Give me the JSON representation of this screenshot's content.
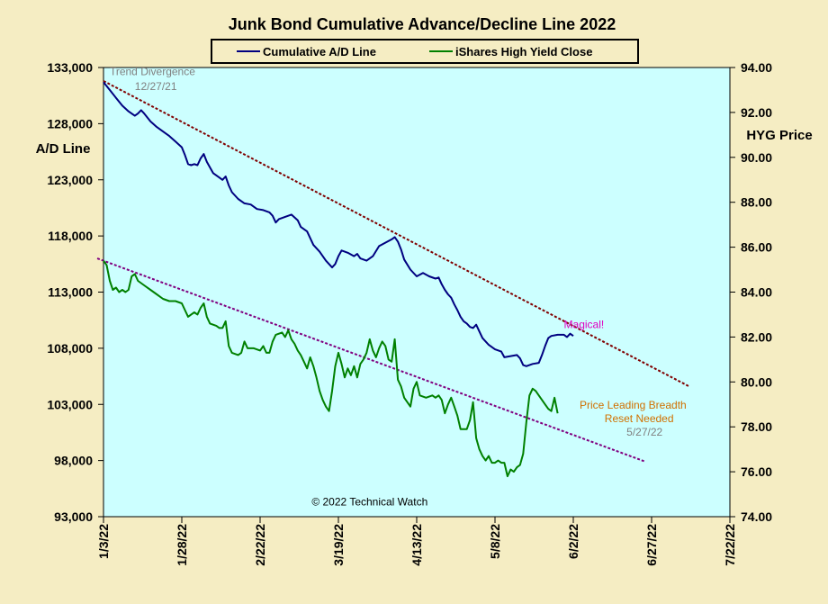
{
  "chart_data": {
    "type": "line",
    "title": "Junk Bond Cumulative  Advance/Decline  Line 2022",
    "y_left_label": "A/D Line",
    "y_right_label": "HYG Price",
    "x_ticks": [
      "1/3/22",
      "1/28/22",
      "2/22/22",
      "3/19/22",
      "4/13/22",
      "5/8/22",
      "6/2/22",
      "6/27/22",
      "7/22/22"
    ],
    "y_left_ticks": [
      "133,000",
      "128,000",
      "123,000",
      "118,000",
      "113,000",
      "108,000",
      "103,000",
      "98,000",
      "93,000"
    ],
    "y_right_ticks": [
      "94.00",
      "92.00",
      "90.00",
      "88.00",
      "86.00",
      "84.00",
      "82.00",
      "80.00",
      "78.00",
      "76.00",
      "74.00"
    ],
    "ylim_left": [
      93000,
      133000
    ],
    "ylim_right": [
      74,
      94
    ],
    "x_range_days": [
      0,
      200
    ],
    "grid": false,
    "legend_position": "top-center",
    "series": [
      {
        "name": "Cumulative A/D Line",
        "axis": "left",
        "color": "#000080",
        "points": [
          [
            0,
            131700
          ],
          [
            2,
            131000
          ],
          [
            4,
            130300
          ],
          [
            6,
            129600
          ],
          [
            8,
            129100
          ],
          [
            10,
            128700
          ],
          [
            11,
            128900
          ],
          [
            12,
            129200
          ],
          [
            13,
            128900
          ],
          [
            15,
            128200
          ],
          [
            17,
            127700
          ],
          [
            19,
            127300
          ],
          [
            21,
            126900
          ],
          [
            23,
            126400
          ],
          [
            25,
            125900
          ],
          [
            26,
            125200
          ],
          [
            27,
            124400
          ],
          [
            28,
            124300
          ],
          [
            29,
            124400
          ],
          [
            30,
            124300
          ],
          [
            31,
            124900
          ],
          [
            32,
            125300
          ],
          [
            33,
            124600
          ],
          [
            35,
            123600
          ],
          [
            37,
            123200
          ],
          [
            38,
            123000
          ],
          [
            39,
            123300
          ],
          [
            40,
            122500
          ],
          [
            41,
            121900
          ],
          [
            43,
            121300
          ],
          [
            45,
            120900
          ],
          [
            47,
            120800
          ],
          [
            49,
            120400
          ],
          [
            51,
            120300
          ],
          [
            53,
            120100
          ],
          [
            54,
            119800
          ],
          [
            55,
            119200
          ],
          [
            56,
            119500
          ],
          [
            58,
            119700
          ],
          [
            60,
            119900
          ],
          [
            62,
            119400
          ],
          [
            63,
            118800
          ],
          [
            65,
            118400
          ],
          [
            66,
            117800
          ],
          [
            67,
            117200
          ],
          [
            69,
            116600
          ],
          [
            71,
            115800
          ],
          [
            73,
            115200
          ],
          [
            74,
            115500
          ],
          [
            75,
            116200
          ],
          [
            76,
            116700
          ],
          [
            78,
            116500
          ],
          [
            80,
            116200
          ],
          [
            81,
            116400
          ],
          [
            82,
            116000
          ],
          [
            84,
            115800
          ],
          [
            86,
            116200
          ],
          [
            88,
            117100
          ],
          [
            90,
            117400
          ],
          [
            92,
            117700
          ],
          [
            93,
            117900
          ],
          [
            94,
            117500
          ],
          [
            95,
            116800
          ],
          [
            96,
            115900
          ],
          [
            98,
            115000
          ],
          [
            100,
            114400
          ],
          [
            102,
            114700
          ],
          [
            104,
            114400
          ],
          [
            106,
            114200
          ],
          [
            107,
            114300
          ],
          [
            108,
            113700
          ],
          [
            109,
            113200
          ],
          [
            110,
            112800
          ],
          [
            111,
            112500
          ],
          [
            112,
            111900
          ],
          [
            113,
            111400
          ],
          [
            114,
            110800
          ],
          [
            115,
            110400
          ],
          [
            116,
            110200
          ],
          [
            117,
            109900
          ],
          [
            118,
            109800
          ],
          [
            119,
            110100
          ],
          [
            120,
            109500
          ],
          [
            121,
            108900
          ],
          [
            123,
            108300
          ],
          [
            125,
            107900
          ],
          [
            127,
            107700
          ],
          [
            128,
            107200
          ],
          [
            130,
            107300
          ],
          [
            132,
            107400
          ],
          [
            133,
            107100
          ],
          [
            134,
            106500
          ],
          [
            135,
            106400
          ],
          [
            137,
            106600
          ],
          [
            139,
            106700
          ],
          [
            140,
            107400
          ],
          [
            141,
            108200
          ],
          [
            142,
            108900
          ],
          [
            143,
            109100
          ],
          [
            145,
            109200
          ],
          [
            147,
            109200
          ],
          [
            148,
            109000
          ],
          [
            149,
            109300
          ],
          [
            150,
            109100
          ]
        ]
      },
      {
        "name": "iShares High Yield Close",
        "axis": "right",
        "color": "#008000",
        "points": [
          [
            0,
            85.4
          ],
          [
            1,
            85.2
          ],
          [
            2,
            84.5
          ],
          [
            3,
            84.1
          ],
          [
            4,
            84.2
          ],
          [
            5,
            84.0
          ],
          [
            6,
            84.1
          ],
          [
            7,
            84.0
          ],
          [
            8,
            84.1
          ],
          [
            9,
            84.7
          ],
          [
            10,
            84.8
          ],
          [
            11,
            84.5
          ],
          [
            13,
            84.3
          ],
          [
            15,
            84.1
          ],
          [
            17,
            83.9
          ],
          [
            19,
            83.7
          ],
          [
            21,
            83.6
          ],
          [
            23,
            83.6
          ],
          [
            25,
            83.5
          ],
          [
            26,
            83.2
          ],
          [
            27,
            82.9
          ],
          [
            28,
            83.0
          ],
          [
            29,
            83.1
          ],
          [
            30,
            83.0
          ],
          [
            31,
            83.3
          ],
          [
            32,
            83.5
          ],
          [
            33,
            82.9
          ],
          [
            34,
            82.6
          ],
          [
            36,
            82.5
          ],
          [
            37,
            82.4
          ],
          [
            38,
            82.4
          ],
          [
            39,
            82.7
          ],
          [
            40,
            81.6
          ],
          [
            41,
            81.3
          ],
          [
            43,
            81.2
          ],
          [
            44,
            81.3
          ],
          [
            45,
            81.8
          ],
          [
            46,
            81.5
          ],
          [
            48,
            81.5
          ],
          [
            50,
            81.4
          ],
          [
            51,
            81.6
          ],
          [
            52,
            81.3
          ],
          [
            53,
            81.3
          ],
          [
            54,
            81.8
          ],
          [
            55,
            82.1
          ],
          [
            57,
            82.2
          ],
          [
            58,
            82.0
          ],
          [
            59,
            82.3
          ],
          [
            60,
            81.9
          ],
          [
            61,
            81.7
          ],
          [
            62,
            81.4
          ],
          [
            63,
            81.2
          ],
          [
            64,
            80.9
          ],
          [
            65,
            80.6
          ],
          [
            66,
            81.1
          ],
          [
            67,
            80.7
          ],
          [
            68,
            80.2
          ],
          [
            69,
            79.6
          ],
          [
            70,
            79.2
          ],
          [
            71,
            78.9
          ],
          [
            72,
            78.7
          ],
          [
            73,
            79.6
          ],
          [
            74,
            80.7
          ],
          [
            75,
            81.3
          ],
          [
            76,
            80.8
          ],
          [
            77,
            80.2
          ],
          [
            78,
            80.6
          ],
          [
            79,
            80.3
          ],
          [
            80,
            80.7
          ],
          [
            81,
            80.2
          ],
          [
            82,
            80.8
          ],
          [
            83,
            81.0
          ],
          [
            84,
            81.3
          ],
          [
            85,
            81.9
          ],
          [
            86,
            81.4
          ],
          [
            87,
            81.1
          ],
          [
            88,
            81.5
          ],
          [
            89,
            81.8
          ],
          [
            90,
            81.6
          ],
          [
            91,
            81.0
          ],
          [
            92,
            80.9
          ],
          [
            93,
            81.9
          ],
          [
            94,
            80.1
          ],
          [
            95,
            79.8
          ],
          [
            96,
            79.3
          ],
          [
            97,
            79.1
          ],
          [
            98,
            78.9
          ],
          [
            99,
            79.7
          ],
          [
            100,
            80.0
          ],
          [
            101,
            79.4
          ],
          [
            103,
            79.3
          ],
          [
            105,
            79.4
          ],
          [
            106,
            79.3
          ],
          [
            107,
            79.4
          ],
          [
            108,
            79.2
          ],
          [
            109,
            78.6
          ],
          [
            110,
            79.0
          ],
          [
            111,
            79.3
          ],
          [
            112,
            78.9
          ],
          [
            113,
            78.5
          ],
          [
            114,
            77.9
          ],
          [
            116,
            77.9
          ],
          [
            117,
            78.3
          ],
          [
            118,
            79.1
          ],
          [
            119,
            77.5
          ],
          [
            120,
            77.0
          ],
          [
            121,
            76.7
          ],
          [
            122,
            76.5
          ],
          [
            123,
            76.7
          ],
          [
            124,
            76.4
          ],
          [
            125,
            76.4
          ],
          [
            126,
            76.5
          ],
          [
            127,
            76.4
          ],
          [
            128,
            76.4
          ],
          [
            129,
            75.8
          ],
          [
            130,
            76.1
          ],
          [
            131,
            76.0
          ],
          [
            132,
            76.2
          ],
          [
            133,
            76.3
          ],
          [
            134,
            76.8
          ],
          [
            135,
            78.2
          ],
          [
            136,
            79.4
          ],
          [
            137,
            79.7
          ],
          [
            138,
            79.6
          ],
          [
            139,
            79.4
          ],
          [
            140,
            79.2
          ],
          [
            141,
            79.0
          ],
          [
            142,
            78.8
          ],
          [
            143,
            78.7
          ],
          [
            144,
            79.3
          ],
          [
            145,
            78.6
          ]
        ]
      }
    ],
    "trendlines": [
      {
        "axis": "left",
        "from": [
          0,
          131800
        ],
        "to": [
          187,
          104600
        ],
        "color": "#800000"
      },
      {
        "axis": "left",
        "from": [
          -2,
          116000
        ],
        "to": [
          173,
          97900
        ],
        "color": "#800080"
      }
    ],
    "annotations": [
      {
        "text": "Trend Divergence",
        "x": 2,
        "y": 132300,
        "axis": "left",
        "color": "#808080",
        "anchor": "start"
      },
      {
        "text": "12/27/21",
        "x": 10,
        "y": 131000,
        "axis": "left",
        "color": "#808080",
        "anchor": "start"
      },
      {
        "text": "Magical!",
        "x": 147,
        "y": 109800,
        "axis": "left",
        "color": "#e000c0",
        "anchor": "start"
      },
      {
        "text": "Price Leading Breadth",
        "x": 152,
        "y": 102600,
        "axis": "left",
        "color": "#d07000",
        "anchor": "start"
      },
      {
        "text": "Reset Needed",
        "x": 160,
        "y": 101400,
        "axis": "left",
        "color": "#d07000",
        "anchor": "start"
      },
      {
        "text": "5/27/22",
        "x": 167,
        "y": 100200,
        "axis": "left",
        "color": "#808080",
        "anchor": "start"
      },
      {
        "text": "© 2022 Technical Watch",
        "x": 85,
        "y": 94000,
        "axis": "left",
        "color": "#000000",
        "anchor": "middle"
      }
    ]
  }
}
